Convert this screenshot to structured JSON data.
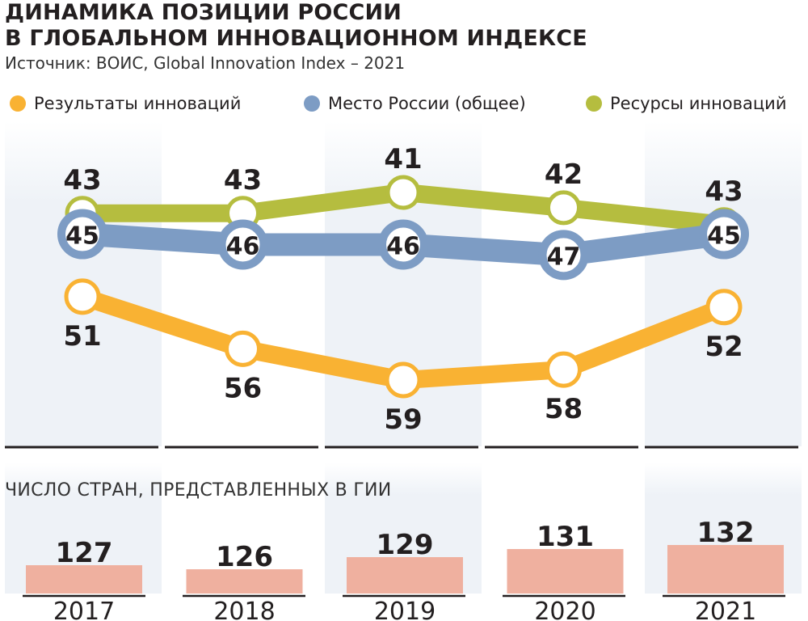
{
  "title_line1": "ДИНАМИКА ПОЗИЦИИ РОССИИ",
  "title_line2": "В ГЛОБАЛЬНОМ ИННОВАЦИОННОМ ИНДЕКСЕ",
  "source": "Источник: ВОИС, Global Innovation Index – 2021",
  "countries_title": "ЧИСЛО СТРАН, ПРЕДСТАВЛЕННЫХ В ГИИ",
  "legend": [
    {
      "label": "Результаты инноваций",
      "color": "#f9b233"
    },
    {
      "label": "Место России (общее)",
      "color": "#7d9cc4"
    },
    {
      "label": "Ресурсы инноваций",
      "color": "#b5bd3f"
    }
  ],
  "chart_data": [
    {
      "type": "line",
      "x": [
        "2017",
        "2018",
        "2019",
        "2020",
        "2021"
      ],
      "y_inverted": true,
      "series": [
        {
          "name": "Ресурсы инноваций",
          "values": [
            43,
            43,
            41,
            42,
            43
          ],
          "color": "#b5bd3f"
        },
        {
          "name": "Место России (общее)",
          "values": [
            45,
            46,
            46,
            47,
            45
          ],
          "color": "#7d9cc4"
        },
        {
          "name": "Результаты инноваций",
          "values": [
            51,
            56,
            59,
            58,
            52
          ],
          "color": "#f9b233"
        }
      ]
    },
    {
      "type": "bar",
      "title": "ЧИСЛО СТРАН, ПРЕДСТАВЛЕННЫХ В ГИИ",
      "categories": [
        "2017",
        "2018",
        "2019",
        "2020",
        "2021"
      ],
      "values": [
        127,
        126,
        129,
        131,
        132
      ],
      "color": "#efb09f"
    }
  ]
}
